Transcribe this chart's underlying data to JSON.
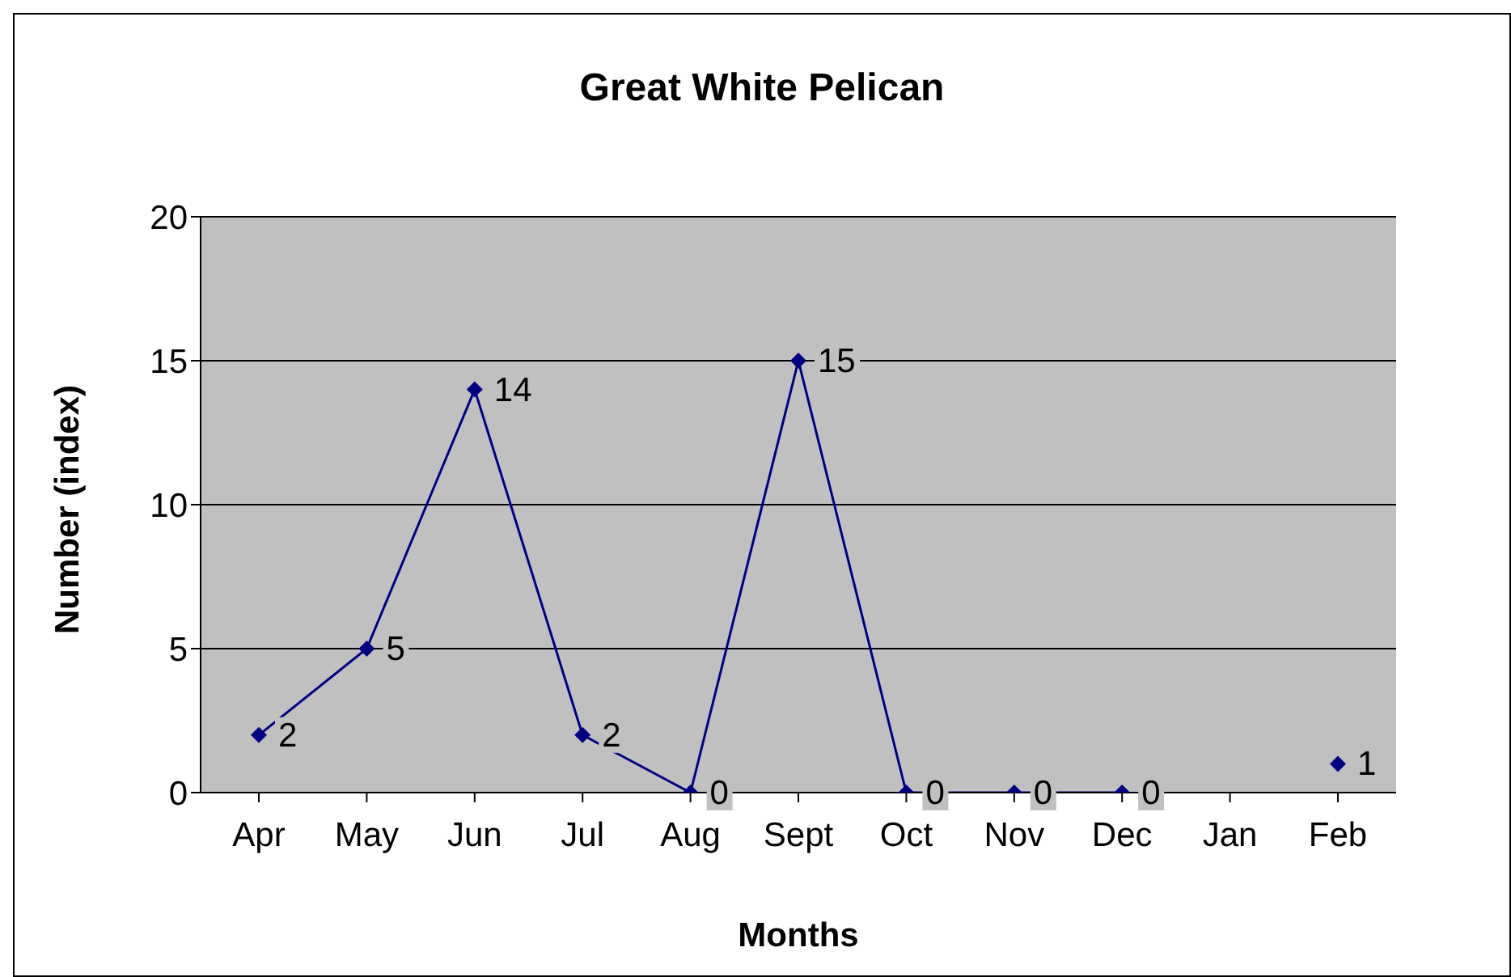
{
  "chart_data": {
    "type": "line",
    "title": "Great White Pelican",
    "xlabel": "Months",
    "ylabel": "Number (index)",
    "categories": [
      "Apr",
      "May",
      "Jun",
      "Jul",
      "Aug",
      "Sept",
      "Oct",
      "Nov",
      "Dec",
      "Jan",
      "Feb"
    ],
    "series": [
      {
        "color": "#000080",
        "values": [
          2,
          5,
          14,
          2,
          0,
          15,
          0,
          0,
          0,
          null,
          1
        ]
      }
    ],
    "ylim": [
      0,
      20
    ],
    "yticks": [
      0,
      5,
      10,
      15,
      20
    ],
    "grid": "y",
    "marker": "diamond",
    "line_style": "solid",
    "data_labels": true
  }
}
